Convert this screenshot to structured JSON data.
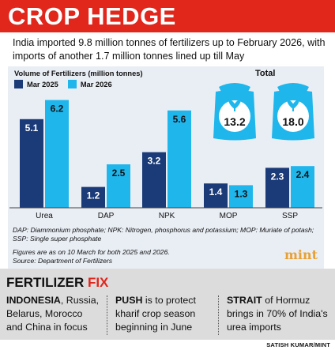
{
  "header": {
    "title": "CROP HEDGE"
  },
  "subtitle": "India imported 9.8 million tonnes of fertilizers up to February 2026, with imports of another 1.7 million tonnes lined up till May",
  "colors": {
    "header_red": "#e1261c",
    "mar2025": "#1a3a78",
    "mar2026": "#1fb6ec",
    "bag": "#1fb6ec",
    "panel": "#e9eef5",
    "mint": "#e8a035"
  },
  "chart_data": {
    "type": "bar",
    "title": "Volume of Fertilizers (million tonnes)",
    "categories": [
      "Urea",
      "DAP",
      "NPK",
      "MOP",
      "SSP"
    ],
    "series": [
      {
        "name": "Mar 2025",
        "values": [
          5.1,
          1.2,
          3.2,
          1.4,
          2.3
        ]
      },
      {
        "name": "Mar 2026",
        "values": [
          6.2,
          2.5,
          5.6,
          1.3,
          2.4
        ]
      }
    ],
    "ylim": [
      0,
      6.5
    ],
    "grid": false,
    "legend": "top-left",
    "totals": {
      "label": "Total",
      "values": [
        {
          "series": "Mar 2025",
          "value": "13.2"
        },
        {
          "series": "Mar 2026",
          "value": "18.0"
        }
      ]
    }
  },
  "footnote": "DAP: Diammonium phosphate; NPK: Nitrogen, phosphorus and potassium; MOP: Muriate of potash; SSP: Single super phosphate",
  "note_line1": "Figures are as on 10 March for both 2025 and 2026.",
  "note_line2": "Source: Department of Fertilizers",
  "logo": "mint",
  "fix": {
    "title_part1": "FERTILIZER",
    "title_part2": "FIX",
    "items": [
      {
        "bold": "INDONESIA",
        "text": ", Russia, Belarus, Morocco and China in focus"
      },
      {
        "bold": "PUSH",
        "text": " is to protect kharif crop season beginning in June"
      },
      {
        "bold": "STRAIT",
        "text": " of Hormuz brings in 70% of India's urea imports"
      }
    ]
  },
  "credit": "SATISH KUMAR/MINT"
}
